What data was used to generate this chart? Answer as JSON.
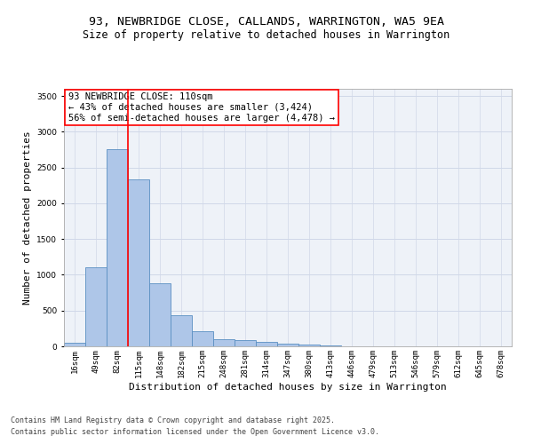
{
  "title1": "93, NEWBRIDGE CLOSE, CALLANDS, WARRINGTON, WA5 9EA",
  "title2": "Size of property relative to detached houses in Warrington",
  "xlabel": "Distribution of detached houses by size in Warrington",
  "ylabel": "Number of detached properties",
  "categories": [
    "16sqm",
    "49sqm",
    "82sqm",
    "115sqm",
    "148sqm",
    "182sqm",
    "215sqm",
    "248sqm",
    "281sqm",
    "314sqm",
    "347sqm",
    "380sqm",
    "413sqm",
    "446sqm",
    "479sqm",
    "513sqm",
    "546sqm",
    "579sqm",
    "612sqm",
    "645sqm",
    "678sqm"
  ],
  "values": [
    50,
    1110,
    2760,
    2330,
    880,
    440,
    210,
    100,
    90,
    65,
    35,
    25,
    15,
    5,
    3,
    2,
    1,
    1,
    0,
    0,
    0
  ],
  "bar_color": "#aec6e8",
  "bar_edge_color": "#5a8fc2",
  "vline_color": "red",
  "annotation_text": "93 NEWBRIDGE CLOSE: 110sqm\n← 43% of detached houses are smaller (3,424)\n56% of semi-detached houses are larger (4,478) →",
  "annotation_box_color": "white",
  "annotation_box_edge": "red",
  "ylim": [
    0,
    3600
  ],
  "yticks": [
    0,
    500,
    1000,
    1500,
    2000,
    2500,
    3000,
    3500
  ],
  "grid_color": "#d0d8e8",
  "bg_color": "#eef2f8",
  "footer1": "Contains HM Land Registry data © Crown copyright and database right 2025.",
  "footer2": "Contains public sector information licensed under the Open Government Licence v3.0.",
  "title1_fontsize": 9.5,
  "title2_fontsize": 8.5,
  "xlabel_fontsize": 8,
  "ylabel_fontsize": 8,
  "tick_fontsize": 6.5,
  "footer_fontsize": 6,
  "annotation_fontsize": 7.5
}
